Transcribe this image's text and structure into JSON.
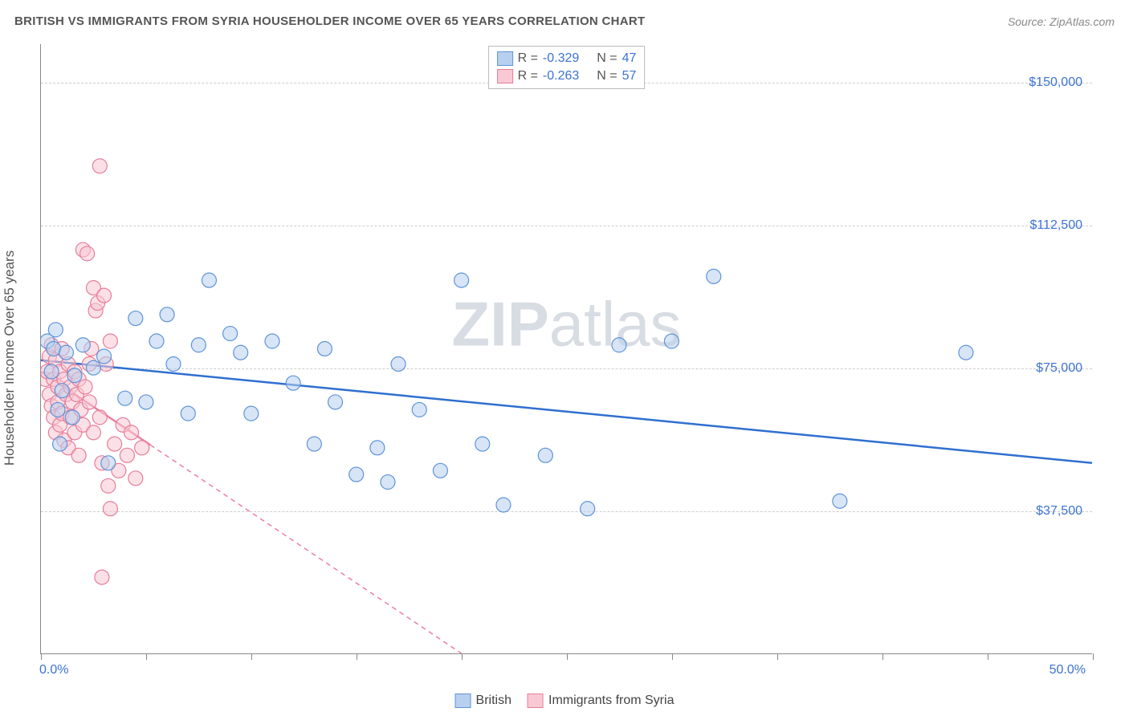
{
  "header": {
    "title": "BRITISH VS IMMIGRANTS FROM SYRIA HOUSEHOLDER INCOME OVER 65 YEARS CORRELATION CHART",
    "source": "Source: ZipAtlas.com"
  },
  "chart": {
    "type": "scatter",
    "y_axis_label": "Householder Income Over 65 years",
    "watermark": "ZIPatlas",
    "xlim": [
      0,
      50
    ],
    "ylim": [
      0,
      160000
    ],
    "y_ticks": [
      37500,
      75000,
      112500,
      150000
    ],
    "y_tick_labels": [
      "$37,500",
      "$75,000",
      "$112,500",
      "$150,000"
    ],
    "x_tick_positions": [
      0,
      5,
      10,
      15,
      20,
      25,
      30,
      35,
      40,
      45,
      50
    ],
    "x_labels": {
      "start": "0.0%",
      "end": "50.0%"
    },
    "colors": {
      "series1_fill": "#b8d0ef",
      "series1_stroke": "#5d94d9",
      "series2_fill": "#f8c9d4",
      "series2_stroke": "#e77d98",
      "trend1": "#2f6fd0",
      "trend2": "#ea7fa0",
      "grid": "#cccccc",
      "axis": "#888888",
      "tick_text": "#3b72d4",
      "text": "#555555",
      "background": "#ffffff"
    },
    "marker_radius": 9,
    "marker_opacity": 0.55,
    "stats_legend": {
      "series1": {
        "R_label": "R =",
        "R_value": "-0.329",
        "N_label": "N =",
        "N_value": "47"
      },
      "series2": {
        "R_label": "R =",
        "R_value": "-0.263",
        "N_label": "N =",
        "N_value": "57"
      }
    },
    "bottom_legend": {
      "series1": "British",
      "series2": "Immigrants from Syria"
    },
    "trend_lines": {
      "series1": {
        "x1": 0,
        "y1": 77000,
        "x2": 50,
        "y2": 50000,
        "dashed_from_x": null
      },
      "series2": {
        "x1": 0,
        "y1": 74000,
        "x2": 20,
        "y2": 0,
        "solid_until_x": 5.2
      }
    },
    "series1_points": [
      [
        0.3,
        82000
      ],
      [
        0.5,
        74000
      ],
      [
        0.6,
        80000
      ],
      [
        0.7,
        85000
      ],
      [
        0.8,
        64000
      ],
      [
        0.9,
        55000
      ],
      [
        1.0,
        69000
      ],
      [
        1.2,
        79000
      ],
      [
        1.5,
        62000
      ],
      [
        1.6,
        73000
      ],
      [
        2.0,
        81000
      ],
      [
        2.5,
        75000
      ],
      [
        3.0,
        78000
      ],
      [
        3.2,
        50000
      ],
      [
        4.0,
        67000
      ],
      [
        4.5,
        88000
      ],
      [
        5.0,
        66000
      ],
      [
        5.5,
        82000
      ],
      [
        6.0,
        89000
      ],
      [
        6.3,
        76000
      ],
      [
        7.0,
        63000
      ],
      [
        7.5,
        81000
      ],
      [
        8.0,
        98000
      ],
      [
        9.0,
        84000
      ],
      [
        9.5,
        79000
      ],
      [
        10.0,
        63000
      ],
      [
        11.0,
        82000
      ],
      [
        12.0,
        71000
      ],
      [
        13.0,
        55000
      ],
      [
        13.5,
        80000
      ],
      [
        14.0,
        66000
      ],
      [
        15.0,
        47000
      ],
      [
        16.0,
        54000
      ],
      [
        16.5,
        45000
      ],
      [
        17.0,
        76000
      ],
      [
        18.0,
        64000
      ],
      [
        19.0,
        48000
      ],
      [
        20.0,
        98000
      ],
      [
        21.0,
        55000
      ],
      [
        22.0,
        39000
      ],
      [
        24.0,
        52000
      ],
      [
        26.0,
        38000
      ],
      [
        27.5,
        81000
      ],
      [
        30.0,
        82000
      ],
      [
        32.0,
        99000
      ],
      [
        38.0,
        40000
      ],
      [
        44.0,
        79000
      ]
    ],
    "series2_points": [
      [
        0.2,
        72000
      ],
      [
        0.3,
        74000
      ],
      [
        0.4,
        78000
      ],
      [
        0.4,
        68000
      ],
      [
        0.5,
        81000
      ],
      [
        0.5,
        65000
      ],
      [
        0.6,
        72000
      ],
      [
        0.6,
        62000
      ],
      [
        0.7,
        77000
      ],
      [
        0.7,
        58000
      ],
      [
        0.8,
        70000
      ],
      [
        0.8,
        66000
      ],
      [
        0.9,
        74000
      ],
      [
        0.9,
        60000
      ],
      [
        1.0,
        80000
      ],
      [
        1.0,
        63000
      ],
      [
        1.1,
        72000
      ],
      [
        1.1,
        56000
      ],
      [
        1.2,
        68000
      ],
      [
        1.3,
        76000
      ],
      [
        1.3,
        54000
      ],
      [
        1.4,
        70000
      ],
      [
        1.4,
        62000
      ],
      [
        1.5,
        66000
      ],
      [
        1.6,
        74000
      ],
      [
        1.6,
        58000
      ],
      [
        1.7,
        68000
      ],
      [
        1.8,
        72000
      ],
      [
        1.8,
        52000
      ],
      [
        1.9,
        64000
      ],
      [
        2.0,
        106000
      ],
      [
        2.0,
        60000
      ],
      [
        2.1,
        70000
      ],
      [
        2.2,
        105000
      ],
      [
        2.3,
        66000
      ],
      [
        2.3,
        76000
      ],
      [
        2.4,
        80000
      ],
      [
        2.5,
        96000
      ],
      [
        2.5,
        58000
      ],
      [
        2.6,
        90000
      ],
      [
        2.7,
        92000
      ],
      [
        2.8,
        62000
      ],
      [
        2.8,
        128000
      ],
      [
        2.9,
        50000
      ],
      [
        3.0,
        94000
      ],
      [
        3.1,
        76000
      ],
      [
        3.2,
        44000
      ],
      [
        3.3,
        38000
      ],
      [
        3.5,
        55000
      ],
      [
        3.7,
        48000
      ],
      [
        3.9,
        60000
      ],
      [
        4.1,
        52000
      ],
      [
        4.3,
        58000
      ],
      [
        4.5,
        46000
      ],
      [
        4.8,
        54000
      ],
      [
        2.9,
        20000
      ],
      [
        3.3,
        82000
      ]
    ]
  }
}
